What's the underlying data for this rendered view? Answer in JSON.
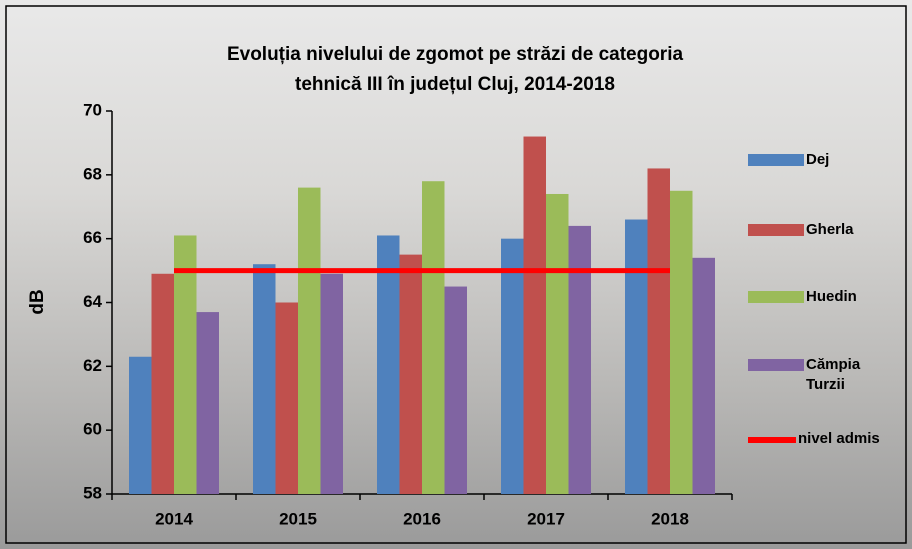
{
  "chart_data": {
    "type": "bar",
    "title": [
      "Evoluția nivelului de zgomot pe străzi de categoria",
      "tehnică III  în județul Cluj, 2014-2018"
    ],
    "y_label": "dB",
    "categories": [
      "2014",
      "2015",
      "2016",
      "2017",
      "2018"
    ],
    "series": [
      {
        "name": "Dej",
        "color": "#4f81bd",
        "values": [
          62.3,
          65.2,
          66.1,
          66.0,
          66.6
        ]
      },
      {
        "name": "Gherla",
        "color": "#c0504d",
        "values": [
          64.9,
          64.0,
          65.5,
          69.2,
          68.2
        ]
      },
      {
        "name": "Huedin",
        "color": "#9bbb59",
        "values": [
          66.1,
          67.6,
          67.8,
          67.4,
          67.5
        ]
      },
      {
        "name": "Cămpia Turzii",
        "color": "#8064a2",
        "values": [
          63.7,
          64.9,
          64.5,
          66.4,
          65.4
        ]
      },
      {
        "name": "nivel admis",
        "color": "#ff0000",
        "type": "line",
        "values": [
          65,
          65,
          65,
          65,
          65
        ]
      }
    ],
    "ylim": [
      58,
      70
    ],
    "yticks": [
      58,
      60,
      62,
      64,
      66,
      68,
      70
    ]
  }
}
